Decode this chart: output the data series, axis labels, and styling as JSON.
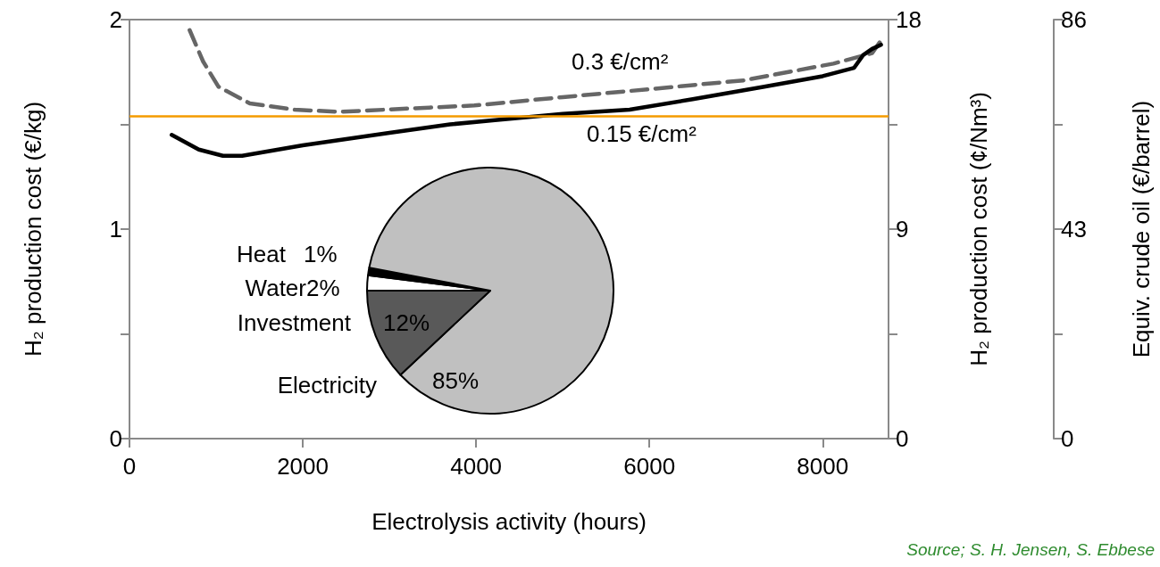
{
  "chart_data": [
    {
      "type": "line",
      "xlabel": "Electrolysis activity (hours)",
      "ylabel": "H₂ production cost (€/kg)",
      "y2label": "H₂ production cost (¢/Nm³)",
      "y3label": "Equiv. crude oil (€/barrel)",
      "xlim": [
        0,
        8760
      ],
      "xticks": [
        0,
        2000,
        4000,
        6000,
        8000
      ],
      "ylim": [
        0,
        2
      ],
      "yticks": [
        0,
        {
          "value": 0.5,
          "label": null
        },
        1,
        {
          "value": 1.5,
          "label": null
        },
        2
      ],
      "y2lim": [
        0,
        18
      ],
      "y2ticks": [
        0,
        {
          "value": 4.5,
          "label": null
        },
        9,
        {
          "value": 13.5,
          "label": null
        },
        18
      ],
      "y3lim": [
        0,
        86
      ],
      "y3ticks": [
        0,
        {
          "value": 21.5,
          "label": null
        },
        43,
        {
          "value": 64.5,
          "label": null
        },
        86
      ],
      "series": [
        {
          "name": "0.3 €/cm²",
          "color": "#666666",
          "line_style": "dashed",
          "x": [
            694,
            850,
            1026,
            1389,
            1907,
            2425,
            2943,
            3461,
            3979,
            5000,
            6052,
            7088,
            8124,
            8570,
            8673
          ],
          "values": [
            1.95,
            1.8,
            1.68,
            1.6,
            1.57,
            1.56,
            1.57,
            1.58,
            1.59,
            1.63,
            1.67,
            1.71,
            1.79,
            1.84,
            1.9
          ]
        },
        {
          "name": "0.15 €/cm²",
          "color": "#000000",
          "line_style": "solid",
          "x": [
            487,
            800,
            1078,
            1300,
            2000,
            3000,
            3699,
            4218,
            5000,
            5772,
            6500,
            7326,
            8000,
            8363,
            8466,
            8570,
            8673
          ],
          "values": [
            1.45,
            1.38,
            1.35,
            1.35,
            1.4,
            1.46,
            1.5,
            1.52,
            1.55,
            1.57,
            1.62,
            1.68,
            1.73,
            1.77,
            1.83,
            1.86,
            1.88
          ]
        }
      ],
      "ref_lines": [
        {
          "axis": "y",
          "value": 1.54,
          "color": "#f59b00"
        }
      ],
      "marker": "none",
      "grid": false,
      "legend": false,
      "annotations": [
        "Source; S. H. Jensen, S. Ebbese"
      ]
    },
    {
      "type": "pie",
      "categories": [
        "Water",
        "Heat",
        "Electricity",
        "Investment"
      ],
      "values": [
        2,
        1,
        85,
        12
      ],
      "colors": [
        "#ffffff",
        "#000000",
        "#c0c0c0",
        "#595959"
      ],
      "value_labels": [
        "2%",
        "1%",
        "85%",
        "12%"
      ]
    }
  ]
}
